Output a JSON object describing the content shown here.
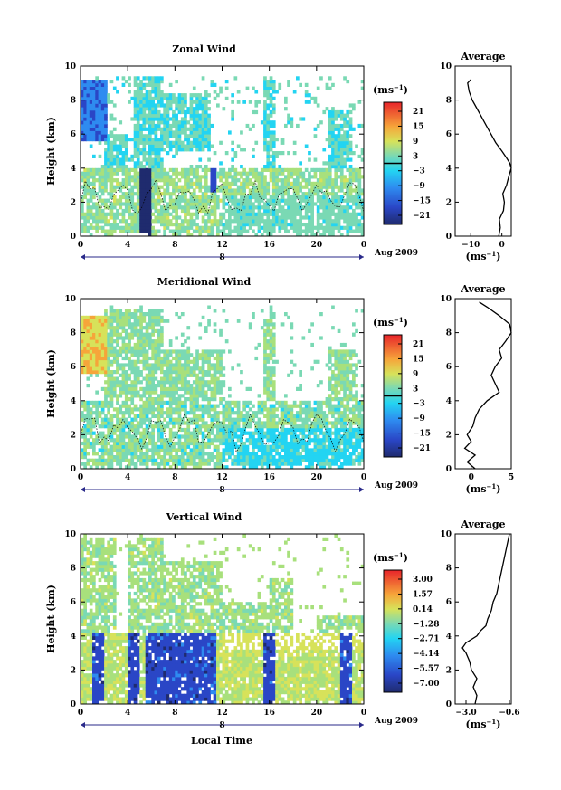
{
  "figure": {
    "date_label": "Aug 2009",
    "local_time_label": "Local Time",
    "day_marker": "8",
    "units": "(ms",
    "units_exp": "−1",
    "units_close": ")"
  },
  "chart_data": [
    {
      "type": "heatmap",
      "title": "Zonal Wind",
      "ylabel": "Height (km)",
      "xlabel": "",
      "xlim": [
        0,
        24
      ],
      "ylim": [
        0,
        10
      ],
      "x_ticks": [
        "0",
        "4",
        "8",
        "12",
        "16",
        "20",
        "0"
      ],
      "y_ticks": [
        "0",
        "2",
        "4",
        "6",
        "8",
        "10"
      ],
      "colorbar": {
        "units": "(ms−1)",
        "min": -21,
        "max": 21,
        "zero_line": 0,
        "ticks": [
          "21",
          "15",
          "9",
          "3",
          "−3",
          "−9",
          "−15",
          "−21"
        ]
      },
      "average_profile": {
        "title": "Average",
        "xlabel": "(ms−1)",
        "x_ticks": [
          "−10",
          "0"
        ],
        "xlim": [
          -15,
          3
        ],
        "height": [
          0.0,
          0.5,
          1.0,
          1.5,
          2.0,
          2.5,
          3.0,
          3.5,
          4.0,
          4.3,
          4.6,
          5.0,
          5.5,
          6.0,
          6.5,
          7.0,
          7.5,
          8.0,
          8.5,
          9.0,
          9.2
        ],
        "wind": [
          -1.0,
          -0.5,
          -0.8,
          0.5,
          0.8,
          0.3,
          1.5,
          2.2,
          3.0,
          2.5,
          1.5,
          0.0,
          -2.0,
          -3.5,
          -5.0,
          -6.5,
          -8.0,
          -9.5,
          -10.5,
          -11.0,
          -10.0
        ]
      }
    },
    {
      "type": "heatmap",
      "title": "Meridional Wind",
      "ylabel": "Height (km)",
      "xlabel": "",
      "xlim": [
        0,
        24
      ],
      "ylim": [
        0,
        10
      ],
      "x_ticks": [
        "0",
        "4",
        "8",
        "12",
        "16",
        "20",
        "0"
      ],
      "y_ticks": [
        "0",
        "2",
        "4",
        "6",
        "8",
        "10"
      ],
      "colorbar": {
        "units": "(ms−1)",
        "min": -21,
        "max": 21,
        "zero_line": 0,
        "ticks": [
          "21",
          "15",
          "9",
          "3",
          "−3",
          "−9",
          "−15",
          "−21"
        ]
      },
      "average_profile": {
        "title": "Average",
        "xlabel": "(ms−1)",
        "x_ticks": [
          "0",
          "5"
        ],
        "xlim": [
          -2,
          5
        ],
        "height": [
          0.0,
          0.4,
          0.8,
          1.2,
          1.6,
          2.0,
          2.5,
          3.0,
          3.5,
          4.0,
          4.5,
          5.0,
          5.5,
          6.0,
          6.5,
          7.0,
          7.5,
          8.0,
          8.5,
          9.0,
          9.5,
          9.8
        ],
        "wind": [
          0.5,
          -0.5,
          0.5,
          -0.8,
          0.0,
          -0.5,
          0.2,
          0.5,
          1.0,
          2.0,
          3.5,
          3.0,
          2.5,
          3.0,
          3.8,
          3.5,
          4.3,
          5.0,
          4.8,
          3.5,
          2.0,
          1.0
        ]
      }
    },
    {
      "type": "heatmap",
      "title": "Vertical Wind",
      "ylabel": "Height (km)",
      "xlabel": "Local Time",
      "xlim": [
        0,
        24
      ],
      "ylim": [
        0,
        10
      ],
      "x_ticks": [
        "0",
        "4",
        "8",
        "12",
        "16",
        "20",
        "0"
      ],
      "y_ticks": [
        "0",
        "2",
        "4",
        "6",
        "8",
        "10"
      ],
      "colorbar": {
        "units": "(ms−1)",
        "min": -7.08,
        "max": 3.0,
        "zero_line": null,
        "ticks": [
          "3.00",
          "1.57",
          "0.14",
          "−1.28",
          "−2.71",
          "−4.14",
          "−5.57",
          "−7.00"
        ]
      },
      "average_profile": {
        "title": "Average",
        "xlabel": "(ms−1)",
        "x_ticks": [
          "−3.0",
          "−0.6"
        ],
        "xlim": [
          -3.6,
          -0.5
        ],
        "height": [
          0.0,
          0.5,
          1.0,
          1.5,
          2.0,
          2.5,
          3.0,
          3.3,
          3.6,
          4.0,
          4.3,
          4.6,
          5.0,
          5.5,
          6.0,
          6.5,
          7.0,
          7.5,
          8.0,
          8.5,
          9.0,
          9.5,
          10.0
        ],
        "wind": [
          -2.5,
          -2.4,
          -2.6,
          -2.4,
          -2.7,
          -2.8,
          -3.0,
          -3.2,
          -3.0,
          -2.4,
          -2.2,
          -1.9,
          -1.8,
          -1.6,
          -1.5,
          -1.3,
          -1.2,
          -1.1,
          -1.0,
          -0.9,
          -0.8,
          -0.7,
          -0.6
        ]
      }
    }
  ]
}
